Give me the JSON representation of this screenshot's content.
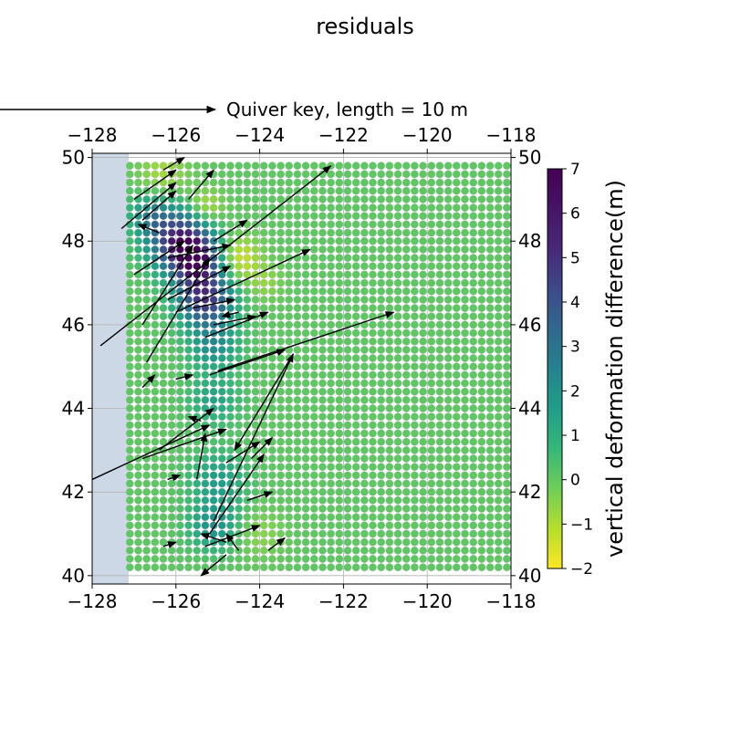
{
  "chart_data": {
    "type": "scatter",
    "title": "residuals",
    "xlabel": "",
    "ylabel": "",
    "xlim": [
      -128,
      -118
    ],
    "ylim": [
      39.8,
      50.1
    ],
    "xticks": [
      -128,
      -126,
      -124,
      -122,
      -120,
      -118
    ],
    "xtick_labels": [
      "−128",
      "−126",
      "−124",
      "−122",
      "−120",
      "−118"
    ],
    "yticks": [
      40,
      42,
      44,
      46,
      48,
      50
    ],
    "ytick_labels": [
      "40",
      "42",
      "44",
      "46",
      "48",
      "50"
    ],
    "grid": true,
    "colormap": "viridis_r",
    "colorbar": {
      "label": "vertical deformation difference(m)",
      "range": [
        -2,
        7
      ],
      "ticks": [
        -2,
        -1,
        0,
        1,
        2,
        3,
        4,
        5,
        6,
        7
      ],
      "tick_labels": [
        "−2",
        "−1",
        "0",
        "1",
        "2",
        "3",
        "4",
        "5",
        "6",
        "7"
      ]
    },
    "quiver_key": {
      "label": "Quiver key, length = 10 m",
      "length_m": 10
    },
    "grid_points": {
      "lon_start": -127.1,
      "lon_end": -118.0,
      "lon_step": 0.2,
      "lat_start": 40.2,
      "lat_end": 49.8,
      "lat_step": 0.2,
      "background_value": 0.3
    },
    "anomalies": [
      {
        "lon": -125.9,
        "lat": 48.0,
        "value": 6.0,
        "radius_deg": 0.5
      },
      {
        "lon": -125.5,
        "lat": 47.5,
        "value": 5.0,
        "radius_deg": 0.4
      },
      {
        "lon": -125.3,
        "lat": 46.6,
        "value": 5.5,
        "radius_deg": 0.45
      },
      {
        "lon": -125.1,
        "lat": 45.5,
        "value": 2.5,
        "radius_deg": 0.4
      },
      {
        "lon": -125.1,
        "lat": 44.2,
        "value": 1.8,
        "radius_deg": 0.4
      },
      {
        "lon": -125.0,
        "lat": 42.3,
        "value": 2.0,
        "radius_deg": 0.45
      },
      {
        "lon": -125.1,
        "lat": 41.2,
        "value": 2.5,
        "radius_deg": 0.4
      },
      {
        "lon": -126.6,
        "lat": 48.6,
        "value": 2.5,
        "radius_deg": 0.35
      },
      {
        "lon": -124.5,
        "lat": 47.6,
        "value": -1.5,
        "radius_deg": 0.35
      },
      {
        "lon": -125.3,
        "lat": 48.8,
        "value": -1.2,
        "radius_deg": 0.3
      },
      {
        "lon": -126.3,
        "lat": 49.6,
        "value": -0.8,
        "radius_deg": 0.4
      },
      {
        "lon": -124.0,
        "lat": 41.0,
        "value": -0.4,
        "radius_deg": 0.4
      },
      {
        "lon": -123.9,
        "lat": 47.0,
        "value": -0.5,
        "radius_deg": 0.3
      }
    ],
    "vectors": [
      {
        "lon": -127.0,
        "lat": 49.0,
        "dlon": 1.0,
        "dlat": 0.7
      },
      {
        "lon": -127.3,
        "lat": 48.3,
        "dlon": 1.3,
        "dlat": 1.1
      },
      {
        "lon": -127.0,
        "lat": 47.2,
        "dlon": 1.2,
        "dlat": 0.8
      },
      {
        "lon": -126.8,
        "lat": 48.5,
        "dlon": 0.8,
        "dlat": 0.7
      },
      {
        "lon": -126.4,
        "lat": 48.2,
        "dlon": -0.5,
        "dlat": 0.2
      },
      {
        "lon": -126.3,
        "lat": 49.7,
        "dlon": 0.5,
        "dlat": 0.3
      },
      {
        "lon": -125.7,
        "lat": 49.0,
        "dlon": 0.6,
        "dlat": 0.7
      },
      {
        "lon": -125.1,
        "lat": 48.0,
        "dlon": 0.8,
        "dlat": 0.5
      },
      {
        "lon": -126.2,
        "lat": 47.6,
        "dlon": 1.5,
        "dlat": 0.3
      },
      {
        "lon": -126.8,
        "lat": 46.0,
        "dlon": 1.2,
        "dlat": 1.9
      },
      {
        "lon": -126.7,
        "lat": 45.1,
        "dlon": 1.5,
        "dlat": 2.5
      },
      {
        "lon": -126.0,
        "lat": 46.3,
        "dlon": 3.2,
        "dlat": 1.5
      },
      {
        "lon": -127.8,
        "lat": 45.5,
        "dlon": 5.5,
        "dlat": 4.3
      },
      {
        "lon": -126.2,
        "lat": 46.6,
        "dlon": 1.5,
        "dlat": 0.8
      },
      {
        "lon": -125.6,
        "lat": 46.4,
        "dlon": 1.0,
        "dlat": 0.2
      },
      {
        "lon": -125.3,
        "lat": 45.7,
        "dlon": 1.5,
        "dlat": 0.6
      },
      {
        "lon": -125.2,
        "lat": 44.8,
        "dlon": 1.8,
        "dlat": 0.6
      },
      {
        "lon": -125.1,
        "lat": 46.0,
        "dlon": 1.0,
        "dlat": 0.2
      },
      {
        "lon": -124.5,
        "lat": 46.3,
        "dlon": -0.4,
        "dlat": -0.1
      },
      {
        "lon": -126.0,
        "lat": 44.7,
        "dlon": 0.4,
        "dlat": 0.1
      },
      {
        "lon": -126.4,
        "lat": 43.0,
        "dlon": 1.3,
        "dlat": 1.0
      },
      {
        "lon": -126.8,
        "lat": 42.8,
        "dlon": 2.0,
        "dlat": 0.7
      },
      {
        "lon": -128.0,
        "lat": 42.3,
        "dlon": 2.8,
        "dlat": 1.3
      },
      {
        "lon": -123.2,
        "lat": 45.3,
        "dlon": -1.4,
        "dlat": -2.3
      },
      {
        "lon": -125.1,
        "lat": 41.3,
        "dlon": 1.9,
        "dlat": 4.0
      },
      {
        "lon": -125.2,
        "lat": 41.0,
        "dlon": 1.3,
        "dlat": 1.9
      },
      {
        "lon": -125.0,
        "lat": 44.9,
        "dlon": 4.2,
        "dlat": 1.4
      },
      {
        "lon": -125.5,
        "lat": 42.3,
        "dlon": 0.2,
        "dlat": 1.1
      },
      {
        "lon": -124.8,
        "lat": 42.7,
        "dlon": 0.8,
        "dlat": 0.5
      },
      {
        "lon": -124.2,
        "lat": 42.8,
        "dlon": 0.5,
        "dlat": 0.5
      },
      {
        "lon": -124.3,
        "lat": 41.8,
        "dlon": 0.6,
        "dlat": 0.2
      },
      {
        "lon": -125.3,
        "lat": 40.7,
        "dlon": 1.3,
        "dlat": 0.5
      },
      {
        "lon": -124.8,
        "lat": 40.8,
        "dlon": -0.6,
        "dlat": 0.2
      },
      {
        "lon": -124.5,
        "lat": 40.6,
        "dlon": -0.3,
        "dlat": 0.4
      },
      {
        "lon": -123.8,
        "lat": 40.6,
        "dlon": 0.4,
        "dlat": 0.3
      },
      {
        "lon": -124.8,
        "lat": 40.5,
        "dlon": -0.6,
        "dlat": -0.5
      },
      {
        "lon": -126.2,
        "lat": 42.3,
        "dlon": 0.3,
        "dlat": 0.1
      },
      {
        "lon": -126.3,
        "lat": 40.7,
        "dlon": 0.3,
        "dlat": 0.1
      },
      {
        "lon": -125.4,
        "lat": 43.7,
        "dlon": -0.3,
        "dlat": 0.1
      },
      {
        "lon": -126.8,
        "lat": 44.5,
        "dlon": 0.3,
        "dlat": 0.3
      }
    ]
  }
}
